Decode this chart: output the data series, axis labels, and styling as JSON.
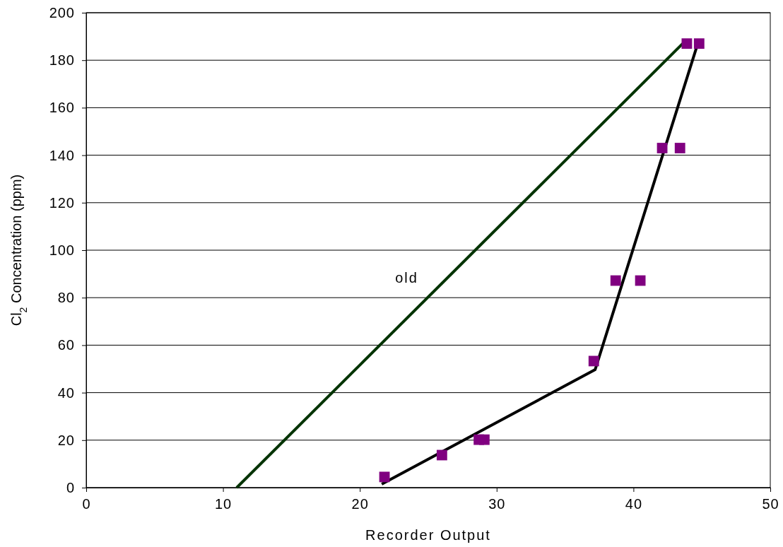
{
  "chart_data": {
    "type": "line",
    "xlabel": "Recorder Output",
    "ylabel": "Cl$_{2}$ Concentration (ppm)",
    "xlim": [
      0,
      50
    ],
    "xticks": [
      0,
      10,
      20,
      30,
      40,
      50
    ],
    "ylim": [
      0,
      200
    ],
    "yticks": [
      0,
      20,
      40,
      60,
      80,
      100,
      120,
      140,
      160,
      180,
      200
    ],
    "grid": "y",
    "series": [
      {
        "name": "old",
        "color": "#003300",
        "marker": "none",
        "x": [
          11,
          43.6
        ],
        "values": [
          0,
          187
        ]
      },
      {
        "color": "#000000",
        "marker": "none",
        "x": [
          21.6,
          37.2,
          44.7
        ],
        "values": [
          1.5,
          49.7,
          187
        ]
      },
      {
        "type": "scatter",
        "color": "#800080",
        "marker": "square",
        "x": [
          21.8,
          26.0,
          28.7,
          29.1,
          37.1,
          38.7,
          40.5,
          42.1,
          43.4,
          43.9,
          44.8
        ],
        "values": [
          4.5,
          13.7,
          20.2,
          20.2,
          53.3,
          87.2,
          87.2,
          143,
          143,
          187,
          187
        ]
      }
    ]
  }
}
